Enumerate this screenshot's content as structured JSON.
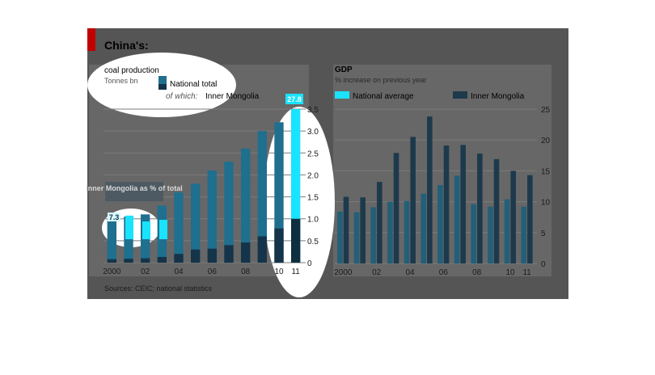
{
  "headline": "China's:",
  "source": "Sources: CEIC; national statistics",
  "colors": {
    "panel_dark": "#555555",
    "panel_light": "#676767",
    "brand_red": "#c00000",
    "national_coal": "#1f6f8f",
    "inner_coal": "#15344a",
    "national_gdp": "#235f78",
    "inner_gdp": "#1d3a4c",
    "highlight_cyan": "#19e3ff",
    "highlight_dark": "#0e2f40",
    "grid": "#7b7b7b",
    "text": "#1b1b1b"
  },
  "chart_data": [
    {
      "type": "bar",
      "title": "coal production",
      "subtitle": "Tonnes bn",
      "legend": [
        {
          "label": "National total",
          "color": "#1f6f8f"
        },
        {
          "label_prefix": "of which:",
          "label": "Inner Mongolia",
          "color": "#15344a"
        }
      ],
      "categories": [
        "2000",
        "01",
        "02",
        "03",
        "04",
        "05",
        "06",
        "07",
        "08",
        "09",
        "10",
        "11"
      ],
      "x_tick_labels": [
        "2000",
        "",
        "02",
        "",
        "04",
        "",
        "06",
        "",
        "08",
        "",
        "10",
        "11"
      ],
      "series": [
        {
          "name": "National total",
          "values": [
            1.0,
            1.05,
            1.1,
            1.3,
            1.6,
            1.8,
            2.1,
            2.3,
            2.6,
            3.0,
            3.2,
            3.5
          ]
        },
        {
          "name": "Inner Mongolia",
          "values": [
            0.08,
            0.09,
            0.1,
            0.13,
            0.2,
            0.3,
            0.32,
            0.4,
            0.46,
            0.6,
            0.78,
            1.0
          ]
        }
      ],
      "ylim": [
        0,
        3.5
      ],
      "y_ticks": [
        "0",
        "0.5",
        "1.0",
        "1.5",
        "2.0",
        "2.5",
        "3.0",
        "3.5"
      ],
      "y_axis_side": "right",
      "annotations": {
        "end_value_label": "27.8",
        "inset_title": "Inner Mongolia as % of total",
        "inset_start_label": "7.3",
        "inset_values": [
          7.3,
          5.5,
          6.0
        ]
      },
      "grid": true
    },
    {
      "type": "bar",
      "title": "GDP",
      "subtitle": "% increase on previous year",
      "legend": [
        {
          "label": "National average",
          "color": "#19e3ff"
        },
        {
          "label": "Inner Mongolia",
          "color": "#15344a"
        }
      ],
      "categories": [
        "2000",
        "01",
        "02",
        "03",
        "04",
        "05",
        "06",
        "07",
        "08",
        "09",
        "10",
        "11"
      ],
      "x_tick_labels": [
        "2000",
        "",
        "02",
        "",
        "04",
        "",
        "06",
        "",
        "08",
        "",
        "10",
        "11"
      ],
      "series": [
        {
          "name": "National average",
          "values": [
            8.4,
            8.3,
            9.1,
            10.0,
            10.1,
            11.3,
            12.7,
            14.2,
            9.6,
            9.2,
            10.4,
            9.2
          ]
        },
        {
          "name": "Inner Mongolia",
          "values": [
            10.8,
            10.7,
            13.2,
            17.9,
            20.5,
            23.8,
            19.1,
            19.2,
            17.8,
            16.9,
            15.0,
            14.3
          ]
        }
      ],
      "ylim": [
        0,
        25
      ],
      "y_ticks": [
        "0",
        "5",
        "10",
        "15",
        "20",
        "25"
      ],
      "y_axis_side": "right",
      "grid": true
    }
  ]
}
